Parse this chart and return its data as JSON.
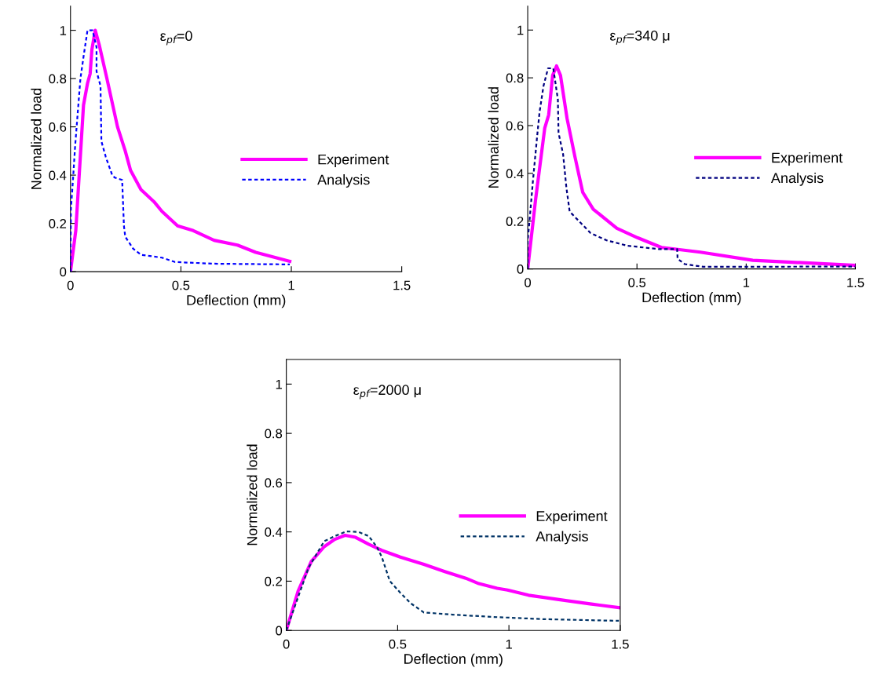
{
  "chart_data": [
    {
      "type": "line",
      "xlabel": "Deflection (mm)",
      "ylabel": "Normalized load",
      "annotations": [
        "ε$_{pf}$=0"
      ],
      "xlim": [
        0,
        1.5
      ],
      "ylim": [
        0,
        1.1
      ],
      "xticks": [
        0,
        0.5,
        1,
        1.5
      ],
      "yticks": [
        0,
        0.2,
        0.4,
        0.6,
        0.8,
        1
      ],
      "grid": false,
      "legend": "right",
      "marker": "none",
      "series": [
        {
          "name": "Experiment",
          "color": "#ff00ff",
          "line_style": "solid",
          "x": [
            0,
            0.024,
            0.059,
            0.077,
            0.089,
            0.097,
            0.112,
            0.13,
            0.165,
            0.213,
            0.248,
            0.272,
            0.319,
            0.378,
            0.414,
            0.485,
            0.556,
            0.65,
            0.756,
            0.839,
            0.993
          ],
          "values": [
            0,
            0.17,
            0.69,
            0.78,
            0.82,
            0.92,
            1.0,
            0.94,
            0.8,
            0.6,
            0.5,
            0.42,
            0.34,
            0.29,
            0.25,
            0.19,
            0.17,
            0.13,
            0.11,
            0.08,
            0.043
          ]
        },
        {
          "name": "Analysis",
          "color": "#0000ff",
          "line_style": "dashed",
          "x": [
            0,
            0.002,
            0.012,
            0.021,
            0.033,
            0.045,
            0.059,
            0.077,
            0.1,
            0.118,
            0.118,
            0.136,
            0.14,
            0.16,
            0.189,
            0.2,
            0.234,
            0.242,
            0.248,
            0.284,
            0.319,
            0.414,
            0.473,
            0.644,
            0.993
          ],
          "values": [
            0,
            0.26,
            0.39,
            0.52,
            0.66,
            0.8,
            0.89,
            1.0,
            1.0,
            0.93,
            0.83,
            0.77,
            0.54,
            0.475,
            0.4,
            0.39,
            0.38,
            0.19,
            0.145,
            0.095,
            0.07,
            0.058,
            0.04,
            0.033,
            0.03
          ]
        }
      ]
    },
    {
      "type": "line",
      "xlabel": "Deflection (mm)",
      "ylabel": "Normalized load",
      "annotations": [
        "ε$_{pf}$=340 μ"
      ],
      "xlim": [
        0,
        1.5
      ],
      "ylim": [
        0,
        1.1
      ],
      "xticks": [
        0,
        0.5,
        1,
        1.5
      ],
      "yticks": [
        0,
        0.2,
        0.4,
        0.6,
        0.8,
        1
      ],
      "grid": false,
      "legend": "right",
      "marker": "none",
      "series": [
        {
          "name": "Experiment",
          "color": "#ff00ff",
          "line_style": "solid",
          "x": [
            0,
            0.036,
            0.078,
            0.096,
            0.114,
            0.132,
            0.15,
            0.18,
            0.216,
            0.252,
            0.3,
            0.408,
            0.504,
            0.612,
            0.79,
            1.03,
            1.5
          ],
          "values": [
            0,
            0.29,
            0.59,
            0.645,
            0.81,
            0.85,
            0.81,
            0.63,
            0.47,
            0.32,
            0.25,
            0.17,
            0.13,
            0.09,
            0.07,
            0.036,
            0.015
          ]
        },
        {
          "name": "Analysis",
          "color": "#000080",
          "line_style": "dashed",
          "x": [
            0,
            0,
            0.01,
            0.024,
            0.042,
            0.054,
            0.072,
            0.093,
            0.117,
            0.138,
            0.141,
            0.162,
            0.177,
            0.192,
            0.24,
            0.288,
            0.36,
            0.456,
            0.6,
            0.684,
            0.686,
            0.719,
            0.803,
            1.03,
            1.5
          ],
          "values": [
            0,
            0.12,
            0.22,
            0.37,
            0.545,
            0.655,
            0.765,
            0.84,
            0.84,
            0.71,
            0.57,
            0.48,
            0.34,
            0.24,
            0.195,
            0.15,
            0.12,
            0.097,
            0.083,
            0.083,
            0.042,
            0.02,
            0.009,
            0.009,
            0.01
          ]
        }
      ]
    },
    {
      "type": "line",
      "xlabel": "Deflection (mm)",
      "ylabel": "Normalized load",
      "annotations": [
        "ε$_{pf}$=2000 μ"
      ],
      "xlim": [
        0,
        1.5
      ],
      "ylim": [
        0,
        1.1
      ],
      "xticks": [
        0,
        0.5,
        1,
        1.5
      ],
      "yticks": [
        0,
        0.2,
        0.4,
        0.6,
        0.8,
        1
      ],
      "grid": false,
      "legend": "right",
      "marker": "none",
      "series": [
        {
          "name": "Experiment",
          "color": "#ff00ff",
          "line_style": "solid",
          "x": [
            0,
            0.053,
            0.112,
            0.17,
            0.218,
            0.264,
            0.311,
            0.37,
            0.429,
            0.512,
            0.618,
            0.712,
            0.806,
            0.865,
            0.947,
            0.994,
            1.088,
            1.218,
            1.371,
            1.5
          ],
          "values": [
            0,
            0.16,
            0.28,
            0.34,
            0.37,
            0.386,
            0.378,
            0.35,
            0.325,
            0.298,
            0.268,
            0.239,
            0.212,
            0.19,
            0.171,
            0.164,
            0.143,
            0.126,
            0.107,
            0.092
          ]
        },
        {
          "name": "Analysis",
          "color": "#003366",
          "line_style": "dashed",
          "x": [
            0,
            0.041,
            0.1,
            0.17,
            0.218,
            0.27,
            0.324,
            0.37,
            0.406,
            0.429,
            0.465,
            0.512,
            0.559,
            0.618,
            0.747,
            0.947,
            1.147,
            1.494
          ],
          "values": [
            0,
            0.105,
            0.255,
            0.362,
            0.383,
            0.402,
            0.4,
            0.383,
            0.34,
            0.298,
            0.2,
            0.153,
            0.11,
            0.073,
            0.064,
            0.054,
            0.046,
            0.039
          ]
        }
      ]
    }
  ]
}
